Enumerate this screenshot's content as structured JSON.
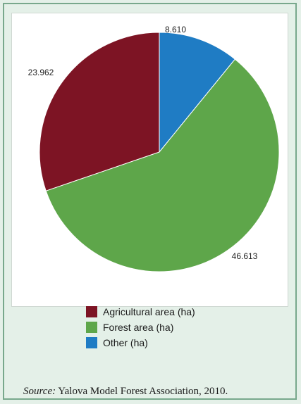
{
  "chart_data": {
    "type": "pie",
    "title": "",
    "slices": [
      {
        "label": "Other (ha)",
        "value": 8610,
        "display": "8.610",
        "color": "#1f7cc4"
      },
      {
        "label": "Forest area (ha)",
        "value": 46613,
        "display": "46.613",
        "color": "#5ea64a"
      },
      {
        "label": "Agricultural area (ha)",
        "value": 23962,
        "display": "23.962",
        "color": "#7d1424"
      }
    ],
    "legend": {
      "placement": "bottom",
      "items": [
        {
          "label": "Agricultural area (ha)",
          "color": "#7d1424"
        },
        {
          "label": "Forest area (ha)",
          "color": "#5ea64a"
        },
        {
          "label": "Other (ha)",
          "color": "#1f7cc4"
        }
      ]
    },
    "start_angle": "12 o'clock",
    "direction": "clockwise"
  },
  "source": {
    "prefix": "Source:",
    "text": " Yalova Model Forest Association, 2010."
  },
  "colors": {
    "background": "#e4f0e8",
    "border": "#78a88c"
  }
}
